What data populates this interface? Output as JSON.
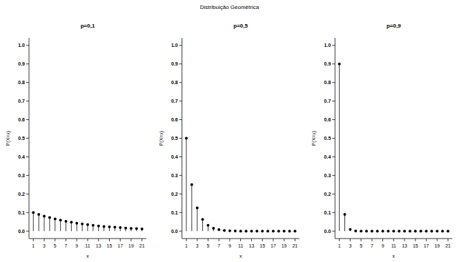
{
  "title": "Distribuição Geométrica",
  "chart_data": [
    {
      "type": "stem",
      "title": "p=0,1",
      "x_label": "x",
      "y_label": "P(X=x)",
      "x": [
        1,
        2,
        3,
        4,
        5,
        6,
        7,
        8,
        9,
        10,
        11,
        12,
        13,
        14,
        15,
        16,
        17,
        18,
        19,
        20,
        21
      ],
      "values": [
        0.1,
        0.09,
        0.081,
        0.073,
        0.066,
        0.059,
        0.053,
        0.048,
        0.043,
        0.039,
        0.035,
        0.031,
        0.028,
        0.025,
        0.023,
        0.021,
        0.019,
        0.017,
        0.015,
        0.014,
        0.012
      ],
      "xlim": [
        0.2,
        21.8
      ],
      "ylim": [
        -0.04,
        1.04
      ],
      "xticks": [
        1,
        3,
        5,
        7,
        9,
        11,
        13,
        15,
        17,
        19,
        21
      ],
      "yticks": [
        {
          "value": 0,
          "label": "0.0"
        },
        0.1,
        0.2,
        0.3,
        0.4,
        0.5,
        0.6,
        0.7,
        0.8,
        0.9,
        {
          "value": 1,
          "label": "1.0"
        }
      ],
      "color": "#000000",
      "marker": "circle"
    },
    {
      "type": "stem",
      "title": "p=0,5",
      "x_label": "x",
      "y_label": "P(X=x)",
      "x": [
        1,
        2,
        3,
        4,
        5,
        6,
        7,
        8,
        9,
        10,
        11,
        12,
        13,
        14,
        15,
        16,
        17,
        18,
        19,
        20,
        21
      ],
      "values": [
        0.5,
        0.25,
        0.125,
        0.063,
        0.031,
        0.016,
        0.008,
        0.004,
        0.002,
        0.001,
        0,
        0,
        0,
        0,
        0,
        0,
        0,
        0,
        0,
        0,
        0
      ],
      "xlim": [
        0.2,
        21.8
      ],
      "ylim": [
        -0.04,
        1.04
      ],
      "xticks": [
        1,
        3,
        5,
        7,
        9,
        11,
        13,
        15,
        17,
        19,
        21
      ],
      "yticks": [
        {
          "value": 0,
          "label": "0.0"
        },
        0.1,
        0.2,
        0.3,
        0.4,
        0.5,
        0.6,
        0.7,
        0.8,
        0.9,
        {
          "value": 1,
          "label": "1.0"
        }
      ],
      "color": "#000000",
      "marker": "circle"
    },
    {
      "type": "stem",
      "title": "p=0,9",
      "x_label": "x",
      "y_label": "P(X=x)",
      "x": [
        1,
        2,
        3,
        4,
        5,
        6,
        7,
        8,
        9,
        10,
        11,
        12,
        13,
        14,
        15,
        16,
        17,
        18,
        19,
        20,
        21
      ],
      "values": [
        0.9,
        0.09,
        0.009,
        0.001,
        0,
        0,
        0,
        0,
        0,
        0,
        0,
        0,
        0,
        0,
        0,
        0,
        0,
        0,
        0,
        0,
        0
      ],
      "xlim": [
        0.2,
        21.8
      ],
      "ylim": [
        -0.04,
        1.04
      ],
      "xticks": [
        1,
        3,
        5,
        7,
        9,
        11,
        13,
        15,
        17,
        19,
        21
      ],
      "yticks": [
        {
          "value": 0,
          "label": "0.0"
        },
        0.1,
        0.2,
        0.3,
        0.4,
        0.5,
        0.6,
        0.7,
        0.8,
        0.9,
        {
          "value": 1,
          "label": "1.0"
        }
      ],
      "color": "#000000",
      "marker": "circle"
    }
  ]
}
